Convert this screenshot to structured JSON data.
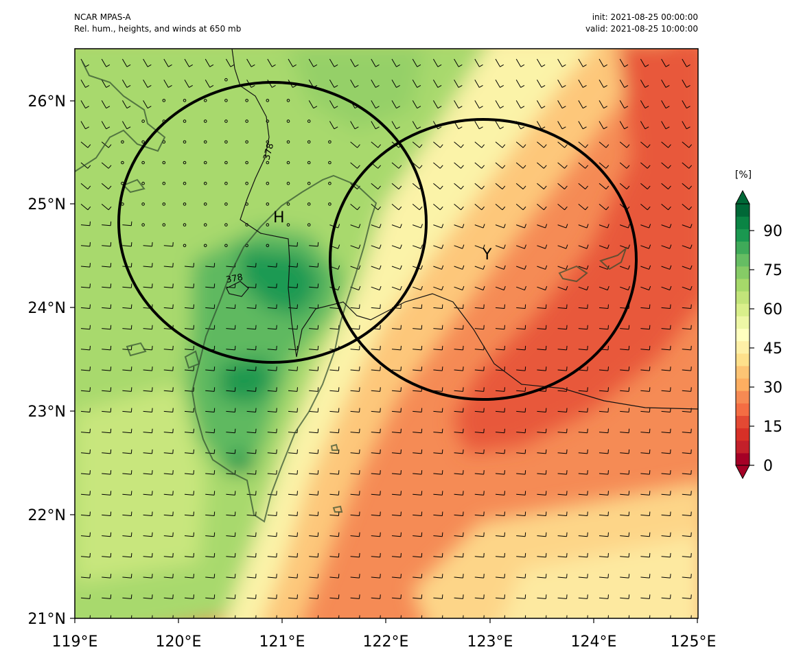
{
  "header": {
    "model": "NCAR MPAS-A",
    "field": "Rel. hum., heights, and winds at 650 mb",
    "init": "init: 2021-08-25 00:00:00",
    "valid": "valid: 2021-08-25 10:00:00"
  },
  "map": {
    "lon_range": [
      119,
      125
    ],
    "lat_range": [
      21,
      26.5
    ],
    "x_ticks": [
      "119°E",
      "120°E",
      "121°E",
      "122°E",
      "123°E",
      "124°E",
      "125°E"
    ],
    "y_ticks": [
      "21°N",
      "22°N",
      "23°N",
      "24°N",
      "25°N",
      "26°N"
    ],
    "contour_label": "378",
    "systems": [
      {
        "label": "H",
        "lon": 121.0,
        "lat": 24.9
      },
      {
        "label": "Y",
        "lon": 122.9,
        "lat": 24.55
      }
    ],
    "circles": [
      {
        "center_lon": 120.9,
        "center_lat": 24.85
      },
      {
        "center_lon": 122.95,
        "center_lat": 24.45
      }
    ]
  },
  "colorbar": {
    "unit": "[%]",
    "ticks": [
      "0",
      "15",
      "30",
      "45",
      "60",
      "75",
      "90"
    ],
    "colors": [
      "#a50026",
      "#c3202a",
      "#d73027",
      "#e34933",
      "#f46d43",
      "#f68a53",
      "#fdae61",
      "#fdc474",
      "#fee08b",
      "#fef0a7",
      "#ffffbf",
      "#eef7a6",
      "#d9ef8b",
      "#c2e47a",
      "#a6d96a",
      "#86cb66",
      "#66bd63",
      "#3faa59",
      "#1a9850",
      "#0a8444",
      "#006837"
    ]
  }
}
